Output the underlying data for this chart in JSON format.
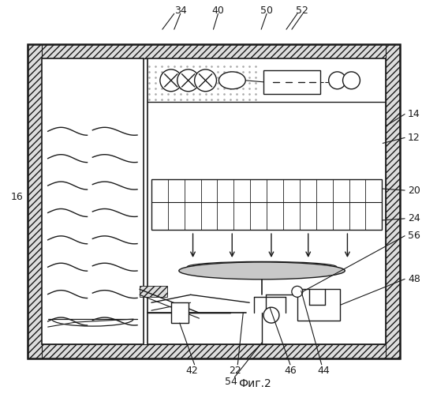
{
  "caption": "Фиг.2",
  "bg": "#ffffff",
  "lc": "#1a1a1a",
  "fig_w": 5.35,
  "fig_h": 4.99,
  "hatch_color": "#888888"
}
